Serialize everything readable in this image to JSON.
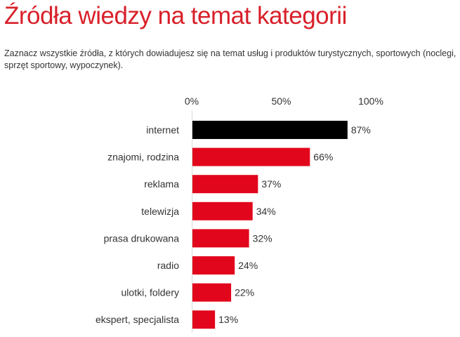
{
  "title": "Źródła wiedzy na temat kategorii",
  "subtitle": "Zaznacz wszystkie źródła, z których dowiadujesz się na temat usług i produktów turystycznych, sportowych (noclegi, sprzęt sportowy, wypoczynek).",
  "colors": {
    "title": "#d8202a",
    "highlight_bar": "#000000",
    "bar": "#e2061c",
    "text": "#333333"
  },
  "chart_data": {
    "type": "bar",
    "orientation": "horizontal",
    "categories": [
      "internet",
      "znajomi, rodzina",
      "reklama",
      "telewizja",
      "prasa drukowana",
      "radio",
      "ulotki, foldery",
      "ekspert, specjalista"
    ],
    "values": [
      87,
      66,
      37,
      34,
      32,
      24,
      22,
      13
    ],
    "value_labels": [
      "87%",
      "66%",
      "37%",
      "34%",
      "32%",
      "24%",
      "22%",
      "13%"
    ],
    "xlim": [
      0,
      100
    ],
    "x_ticks": [
      0,
      50,
      100
    ],
    "x_tick_labels": [
      "0%",
      "50%",
      "100%"
    ],
    "axis_position": "top",
    "grid": false,
    "legend": "none",
    "highlighted_category": "internet"
  }
}
